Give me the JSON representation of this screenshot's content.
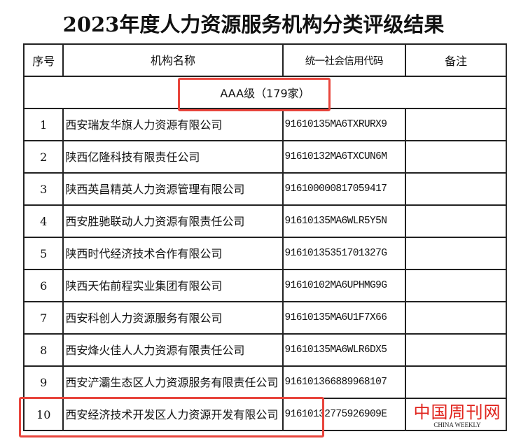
{
  "title": "2023年度人力资源服务机构分类评级结果",
  "headers": [
    "序号",
    "机构名称",
    "统一社会信用代码",
    "备注"
  ],
  "group": "AAA级（179家）",
  "rows": [
    {
      "no": "1",
      "name": "西安瑞友华旗人力资源有限公司",
      "code": "91610135MA6TXRURX9",
      "note": ""
    },
    {
      "no": "2",
      "name": "陕西亿隆科技有限责任公司",
      "code": "91610132MA6TXCUN6M",
      "note": ""
    },
    {
      "no": "3",
      "name": "陕西英昌精英人力资源管理有限公司",
      "code": "916100000817059417",
      "note": ""
    },
    {
      "no": "4",
      "name": "西安胜驰联动人力资源有限责任公司",
      "code": "91610135MA6WLR5Y5N",
      "note": ""
    },
    {
      "no": "5",
      "name": "陕西时代经济技术合作有限公司",
      "code": "91610135351701327G",
      "note": ""
    },
    {
      "no": "6",
      "name": "陕西天佑前程实业集团有限公司",
      "code": "91610102MA6UPHMG9G",
      "note": ""
    },
    {
      "no": "7",
      "name": "西安科创人力资源服务有限公司",
      "code": "91610135MA6U1F7X66",
      "note": ""
    },
    {
      "no": "8",
      "name": "西安烽火佳人人力资源有限责任公司",
      "code": "91610135MA6WLR6DX5",
      "note": ""
    },
    {
      "no": "9",
      "name": "西安浐灞生态区人力资源服务有限责任公司",
      "code": "916101366889968107",
      "note": ""
    },
    {
      "no": "10",
      "name": "西安经济技术开发区人力资源开发有限公司",
      "code": "91610132775926909E",
      "note": ""
    }
  ],
  "watermark": {
    "cn": "中国周刊网",
    "en": "CHINA WEEKLY"
  },
  "colors": {
    "highlight": "#e8453c",
    "watermark": "#e0231c"
  }
}
